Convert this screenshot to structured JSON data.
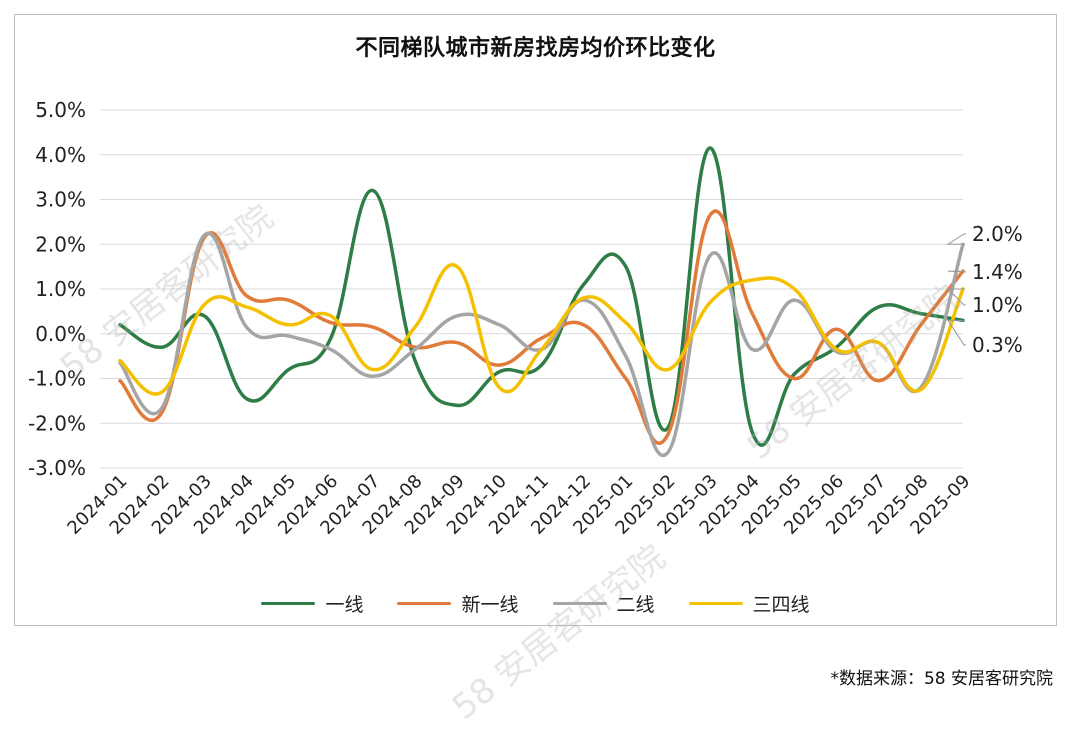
{
  "title": "不同梯队城市新房找房均价环比变化",
  "source": "*数据来源：58 安居客研究院",
  "watermark_text": "58 安居客研究院",
  "chart_data": {
    "type": "line",
    "title": "不同梯队城市新房找房均价环比变化",
    "xlabel": "",
    "ylabel": "",
    "ylim": [
      -3.0,
      5.0
    ],
    "y_ticks": [
      "5.0%",
      "4.0%",
      "3.0%",
      "2.0%",
      "1.0%",
      "0.0%",
      "-1.0%",
      "-2.0%",
      "-3.0%"
    ],
    "grid": true,
    "legend_position": "bottom",
    "categories": [
      "2024-01",
      "2024-02",
      "2024-03",
      "2024-04",
      "2024-05",
      "2024-06",
      "2024-07",
      "2024-08",
      "2024-09",
      "2024-10",
      "2024-11",
      "2024-12",
      "2025-01",
      "2025-02",
      "2025-03",
      "2025-04",
      "2025-05",
      "2025-06",
      "2025-07",
      "2025-08",
      "2025-09"
    ],
    "series": [
      {
        "name": "一线",
        "color": "#2e7d46",
        "values": [
          0.2,
          -0.3,
          0.4,
          -1.45,
          -0.8,
          -0.1,
          3.2,
          -0.6,
          -1.6,
          -0.85,
          -0.7,
          1.1,
          1.5,
          -2.1,
          4.15,
          -2.2,
          -0.9,
          -0.3,
          0.6,
          0.45,
          0.3
        ]
      },
      {
        "name": "新一线",
        "color": "#e07b39",
        "values": [
          -1.05,
          -1.75,
          2.15,
          0.85,
          0.75,
          0.25,
          0.15,
          -0.3,
          -0.2,
          -0.7,
          -0.1,
          0.2,
          -1.0,
          -2.25,
          2.65,
          0.45,
          -1.0,
          0.1,
          -1.05,
          0.2,
          1.4
        ]
      },
      {
        "name": "二线",
        "color": "#a5a5a5",
        "values": [
          -0.65,
          -1.65,
          2.2,
          0.15,
          -0.05,
          -0.35,
          -0.95,
          -0.35,
          0.4,
          0.2,
          -0.35,
          0.75,
          -0.5,
          -2.65,
          1.75,
          -0.35,
          0.75,
          -0.4,
          -0.2,
          -1.2,
          2.0
        ]
      },
      {
        "name": "三四线",
        "color": "#f5c000",
        "values": [
          -0.6,
          -1.3,
          0.65,
          0.6,
          0.2,
          0.4,
          -0.8,
          0.15,
          1.5,
          -1.2,
          -0.35,
          0.8,
          0.25,
          -0.8,
          0.7,
          1.2,
          1.0,
          -0.35,
          -0.2,
          -1.25,
          1.0
        ]
      }
    ],
    "end_labels": [
      {
        "text": "2.0%",
        "value": 2.0
      },
      {
        "text": "1.4%",
        "value": 1.4
      },
      {
        "text": "1.0%",
        "value": 1.0
      },
      {
        "text": "0.3%",
        "value": 0.3
      }
    ]
  }
}
